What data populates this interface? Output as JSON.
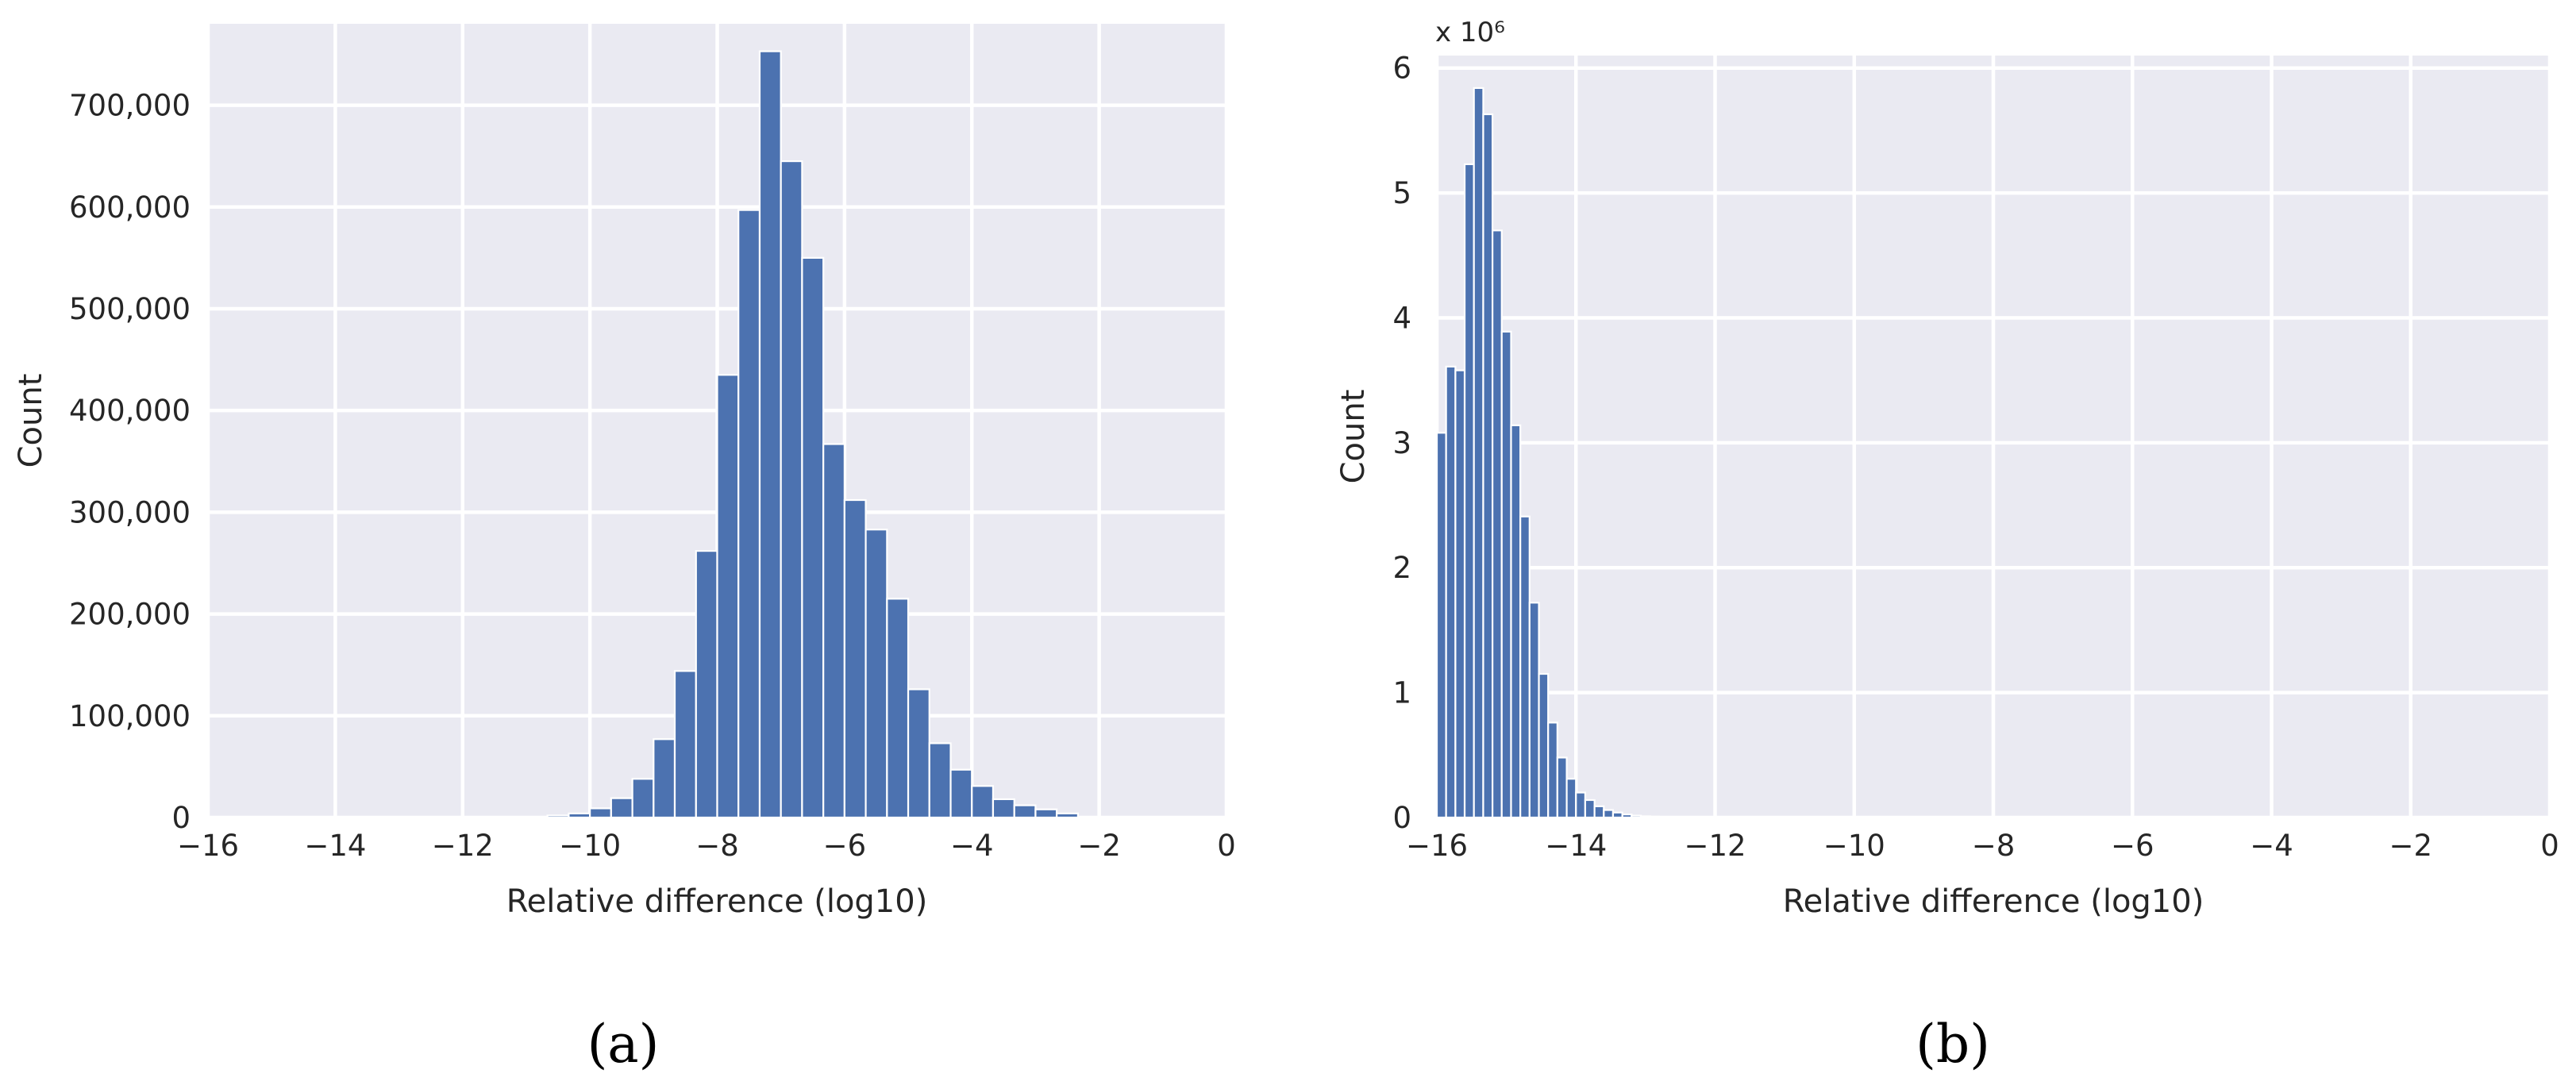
{
  "panels": [
    {
      "caption": "(a)",
      "chart_data": {
        "type": "bar",
        "xlabel": "Relative difference (log10)",
        "ylabel": "Count",
        "xlim": [
          -16,
          0
        ],
        "ylim": [
          0,
          780000
        ],
        "xticks": [
          -16,
          -14,
          -12,
          -10,
          -8,
          -6,
          -4,
          -2,
          0
        ],
        "xtick_labels": [
          "−16",
          "−14",
          "−12",
          "−10",
          "−8",
          "−6",
          "−4",
          "−2",
          "0"
        ],
        "yticks": [
          0,
          100000,
          200000,
          300000,
          400000,
          500000,
          600000,
          700000
        ],
        "ytick_labels": [
          "0",
          "100,000",
          "200,000",
          "300,000",
          "400,000",
          "500,000",
          "600,000",
          "700,000"
        ],
        "y_multiplier": "",
        "grid": true,
        "bin_edges": [
          -11,
          -10.667,
          -10.333,
          -10,
          -9.667,
          -9.333,
          -9,
          -8.667,
          -8.333,
          -8,
          -7.667,
          -7.333,
          -7,
          -6.667,
          -6.333,
          -6,
          -5.667,
          -5.333,
          -5,
          -4.667,
          -4.333,
          -4,
          -3.667,
          -3.333,
          -3,
          -2.667,
          -2.333
        ],
        "values": [
          500,
          2000,
          4000,
          9000,
          19000,
          38000,
          77000,
          144000,
          262000,
          435000,
          597000,
          753000,
          645000,
          550000,
          367000,
          312000,
          283000,
          215000,
          126000,
          73000,
          47000,
          31000,
          18000,
          12000,
          8000,
          4000
        ]
      }
    },
    {
      "caption": "(b)",
      "chart_data": {
        "type": "bar",
        "xlabel": "Relative difference (log10)",
        "ylabel": "Count",
        "xlim": [
          -16,
          0
        ],
        "ylim": [
          0,
          6.1
        ],
        "xticks": [
          -16,
          -14,
          -12,
          -10,
          -8,
          -6,
          -4,
          -2,
          0
        ],
        "xtick_labels": [
          "−16",
          "−14",
          "−12",
          "−10",
          "−8",
          "−6",
          "−4",
          "−2",
          "0"
        ],
        "yticks": [
          0,
          1,
          2,
          3,
          4,
          5,
          6
        ],
        "ytick_labels": [
          "0",
          "1",
          "2",
          "3",
          "4",
          "5",
          "6"
        ],
        "y_multiplier": "x 10⁶",
        "grid": true,
        "bin_edges": [
          -16,
          -15.867,
          -15.733,
          -15.6,
          -15.467,
          -15.333,
          -15.2,
          -15.067,
          -14.933,
          -14.8,
          -14.667,
          -14.533,
          -14.4,
          -14.267,
          -14.133,
          -14,
          -13.867,
          -13.733,
          -13.6,
          -13.467,
          -13.333,
          -13.2,
          -13.067,
          -12.933,
          -12.8,
          -12.667,
          -12.533,
          -12.4,
          -12.267
        ],
        "values": [
          3.08,
          3.61,
          3.58,
          5.23,
          5.84,
          5.63,
          4.7,
          3.89,
          3.14,
          2.41,
          1.72,
          1.15,
          0.76,
          0.48,
          0.31,
          0.2,
          0.14,
          0.09,
          0.06,
          0.04,
          0.025,
          0.015,
          0.01,
          0.007,
          0.005,
          0.003,
          0.002,
          0.001
        ]
      }
    }
  ],
  "colors": {
    "bar": "#4c72b0",
    "plot_bg": "#eaeaf2",
    "grid": "#ffffff",
    "text": "#262626"
  }
}
